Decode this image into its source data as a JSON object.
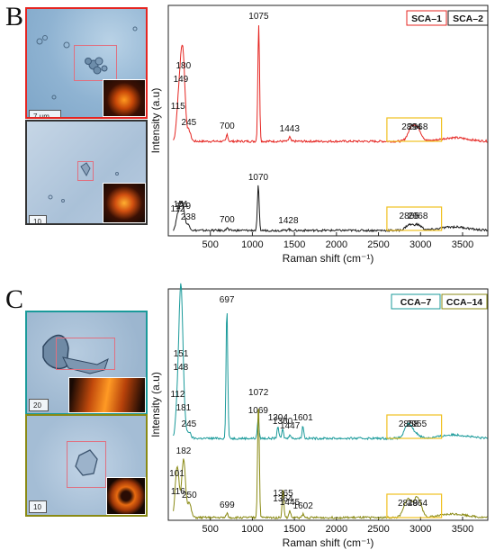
{
  "panels": {
    "top_letter": "B",
    "bottom_letter": "C",
    "scale_labels": [
      "7 µm",
      "10 µm",
      "20 µm",
      "10 µm"
    ]
  },
  "colors": {
    "sca1": "#e52521",
    "sca2": "#1a1a1a",
    "cca7": "#1a9a9a",
    "cca14": "#8a8a14",
    "box": "#f0c020"
  },
  "chart_data": [
    {
      "type": "line",
      "title": "",
      "xlabel": "Raman shift (cm⁻¹)",
      "ylabel": "Intensity (a.u)",
      "xlim": [
        0,
        3800
      ],
      "x_ticks": [
        "500",
        "1000",
        "1500",
        "2000",
        "2500",
        "3000",
        "3500"
      ],
      "x_tick_values": [
        500,
        1000,
        1500,
        2000,
        2500,
        3000,
        3500
      ],
      "legend": [
        "SCA–1",
        "SCA–2"
      ],
      "highlight_range": [
        2600,
        3250
      ],
      "series": [
        {
          "name": "SCA–1",
          "peaks": [
            {
              "x": 115,
              "label": "115"
            },
            {
              "x": 149,
              "label": "149"
            },
            {
              "x": 180,
              "label": "180"
            },
            {
              "x": 245,
              "label": "245"
            },
            {
              "x": 700,
              "label": "700"
            },
            {
              "x": 1075,
              "label": "1075"
            },
            {
              "x": 1443,
              "label": "1443"
            },
            {
              "x": 2894,
              "label": "2894"
            },
            {
              "x": 2968,
              "label": "2968"
            }
          ]
        },
        {
          "name": "SCA–2",
          "peaks": [
            {
              "x": 112,
              "label": "112"
            },
            {
              "x": 151,
              "label": "151"
            },
            {
              "x": 179,
              "label": "179"
            },
            {
              "x": 238,
              "label": "238"
            },
            {
              "x": 700,
              "label": "700"
            },
            {
              "x": 1070,
              "label": "1070"
            },
            {
              "x": 1428,
              "label": "1428"
            },
            {
              "x": 2865,
              "label": "2865"
            },
            {
              "x": 2968,
              "label": "2968"
            }
          ]
        }
      ]
    },
    {
      "type": "line",
      "title": "",
      "xlabel": "Raman shift (cm⁻¹)",
      "ylabel": "Intensity (a.u)",
      "xlim": [
        0,
        3800
      ],
      "x_ticks": [
        "500",
        "1000",
        "1500",
        "2000",
        "2500",
        "3000",
        "3500"
      ],
      "x_tick_values": [
        500,
        1000,
        1500,
        2000,
        2500,
        3000,
        3500
      ],
      "legend": [
        "CCA–7",
        "CCA–14"
      ],
      "highlight_range": [
        2600,
        3250
      ],
      "series": [
        {
          "name": "CCA–7",
          "peaks": [
            {
              "x": 112,
              "label": "112"
            },
            {
              "x": 148,
              "label": "148"
            },
            {
              "x": 151,
              "label": "151"
            },
            {
              "x": 181,
              "label": "181"
            },
            {
              "x": 245,
              "label": "245"
            },
            {
              "x": 697,
              "label": "697"
            },
            {
              "x": 1069,
              "label": "1069"
            },
            {
              "x": 1304,
              "label": "1304"
            },
            {
              "x": 1360,
              "label": "1360"
            },
            {
              "x": 1447,
              "label": "1447"
            },
            {
              "x": 1601,
              "label": "1601"
            },
            {
              "x": 2858,
              "label": "2858"
            },
            {
              "x": 2955,
              "label": "2955"
            }
          ]
        },
        {
          "name": "CCA–14",
          "peaks": [
            {
              "x": 116,
              "label": "116"
            },
            {
              "x": 101,
              "label": "101"
            },
            {
              "x": 182,
              "label": "182"
            },
            {
              "x": 250,
              "label": "250"
            },
            {
              "x": 699,
              "label": "699"
            },
            {
              "x": 1072,
              "label": "1072"
            },
            {
              "x": 1365,
              "label": "1365"
            },
            {
              "x": 1364,
              "label": "1364"
            },
            {
              "x": 1445,
              "label": "1445"
            },
            {
              "x": 1602,
              "label": "1602"
            },
            {
              "x": 2848,
              "label": "2848"
            },
            {
              "x": 2964,
              "label": "2964"
            }
          ]
        }
      ]
    }
  ]
}
